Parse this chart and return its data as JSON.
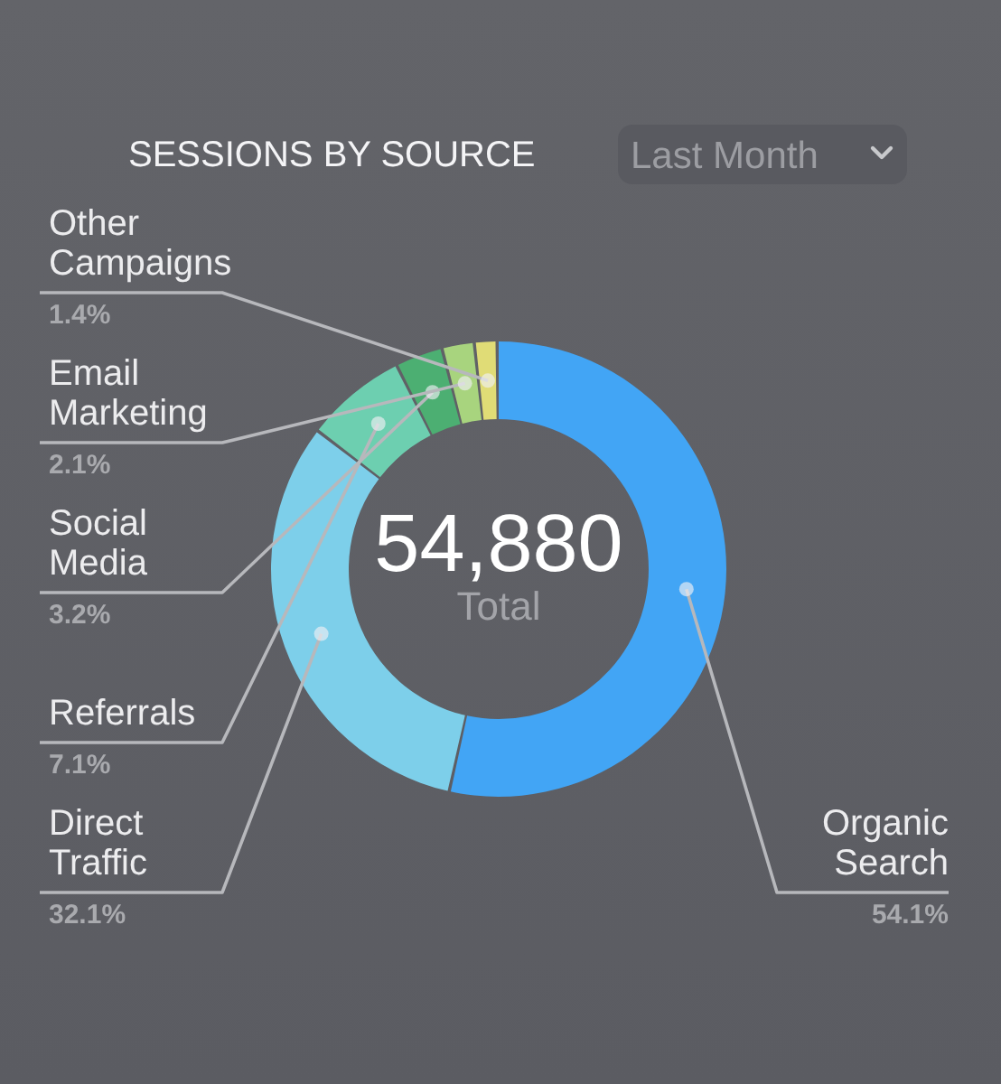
{
  "chart_data": {
    "type": "donut",
    "title": "SESSIONS BY SOURCE",
    "subtitle": "Last Month",
    "categories": [
      "Organic Search",
      "Direct Traffic",
      "Referrals",
      "Social Media",
      "Email Marketing",
      "Other Campaigns"
    ],
    "values": [
      54.1,
      32.1,
      7.1,
      3.2,
      2.1,
      1.4
    ],
    "colors": [
      "#42a5f5",
      "#7dcfea",
      "#6dcfb0",
      "#4caf72",
      "#a8d47e",
      "#e0dc76"
    ],
    "value_labels": [
      "54.1%",
      "32.1%",
      "7.1%",
      "3.2%",
      "2.1%",
      "1.4%"
    ],
    "annotations": [
      "54,880",
      "Total"
    ]
  }
}
